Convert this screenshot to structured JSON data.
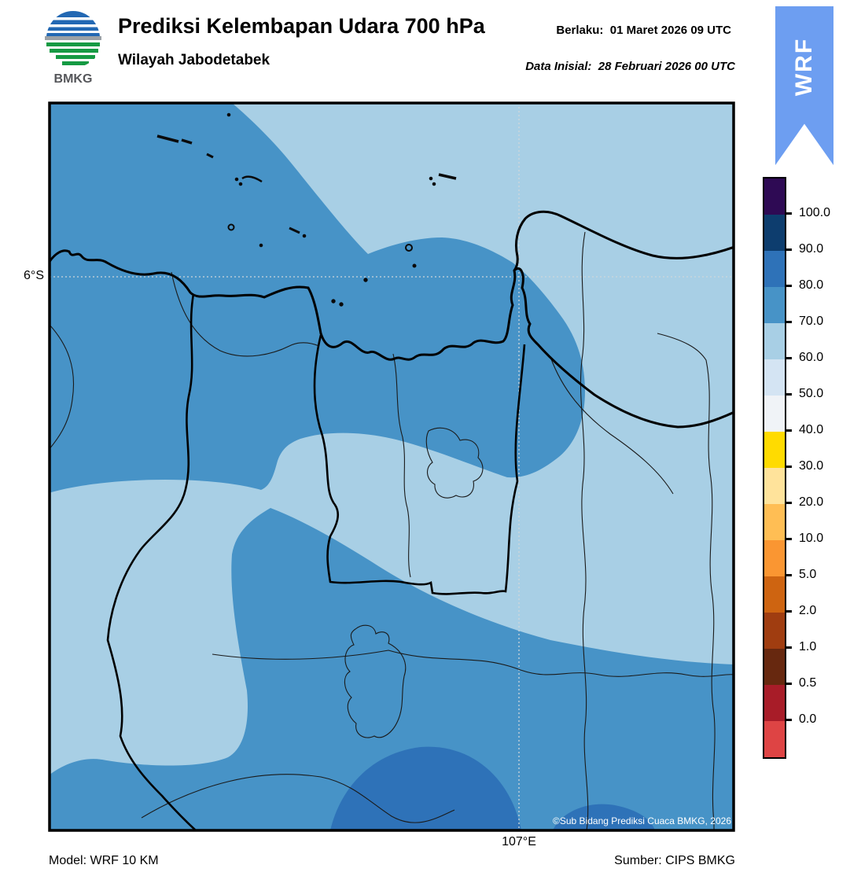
{
  "header": {
    "logo_text": "BMKG",
    "title": "Prediksi Kelembapan Udara 700 hPa",
    "subtitle": "Wilayah Jabodetabek",
    "valid_label": "Berlaku:",
    "valid_value": "01 Maret 2026 09 UTC",
    "init_label": "Data Inisial:",
    "init_value": "28 Februari 2026 00 UTC",
    "ribbon_text": "WRF"
  },
  "map": {
    "lat_tick_label": "6°S",
    "lon_tick_label": "107°E",
    "copyright": "©Sub Bidang Prediksi Cuaca BMKG, 2026"
  },
  "footer": {
    "model": "Model: WRF 10 KM",
    "source": "Sumber: CIPS BMKG"
  },
  "colorbar": {
    "labels": [
      "100.0",
      "90.0",
      "80.0",
      "70.0",
      "60.0",
      "50.0",
      "40.0",
      "30.0",
      "20.0",
      "10.0",
      "5.0",
      "2.0",
      "1.0",
      "0.5",
      "0.0"
    ],
    "colors": [
      "#2E0A54",
      "#0D3D6E",
      "#2E72B8",
      "#4793C7",
      "#A8CFE5",
      "#D4E4F3",
      "#F0F3F7",
      "#FFDB00",
      "#FFE39B",
      "#FFBE54",
      "#FA9632",
      "#CE6411",
      "#A03D10",
      "#67280F",
      "#A81C28",
      "#DE4444"
    ]
  },
  "colors": {
    "humidity_70_80": "#4793C7",
    "humidity_60_70": "#A8CFE5",
    "humidity_80_90": "#2E72B8",
    "ribbon_blue": "#6D9EF1",
    "gridline": "#CFD6DA"
  }
}
